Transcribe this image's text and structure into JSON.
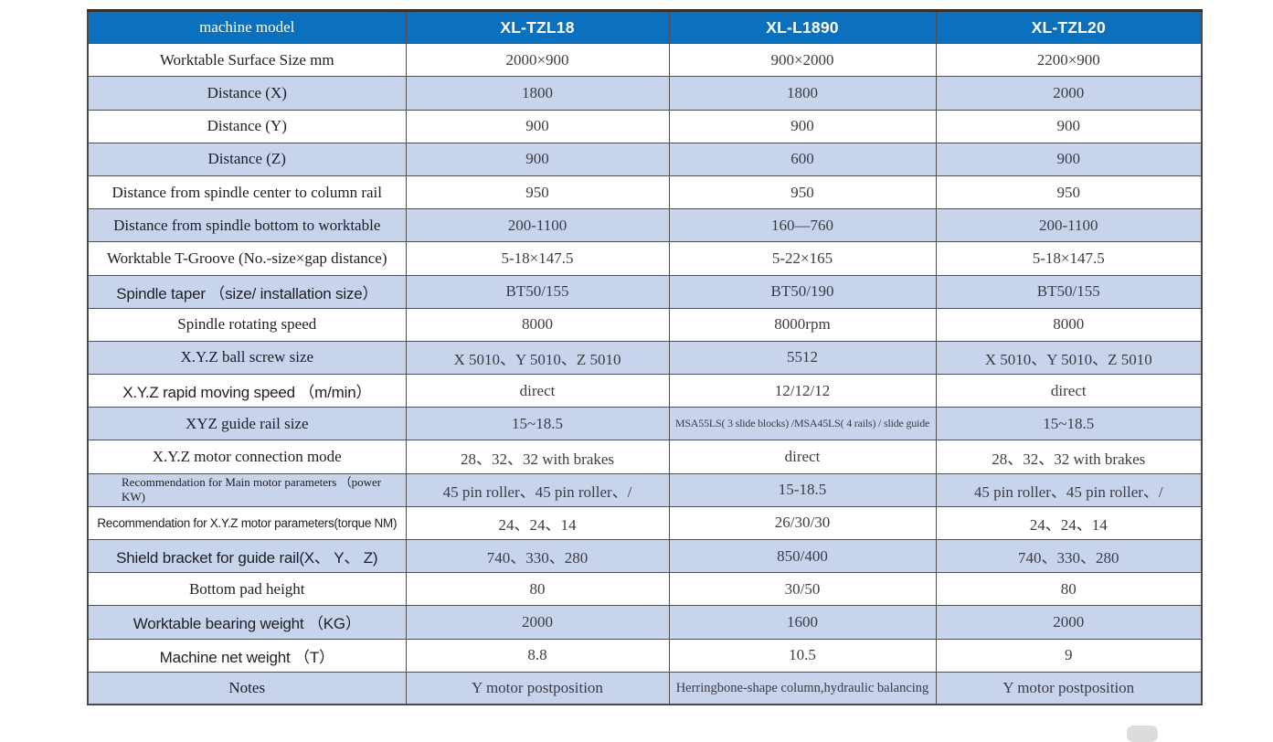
{
  "table": {
    "colors": {
      "header_bg": "#0b70bd",
      "stripe_bg": "#c7d4ec"
    },
    "columns": [
      "machine model",
      "XL-TZL18",
      "XL-L1890",
      "XL-TZL20"
    ],
    "rows": [
      {
        "label": "Worktable Surface Size mm",
        "values": [
          "2000×900",
          "900×2000",
          "2200×900"
        ]
      },
      {
        "label": "Distance (X)",
        "values": [
          "1800",
          "1800",
          "2000"
        ]
      },
      {
        "label": "Distance (Y)",
        "values": [
          "900",
          "900",
          "900"
        ]
      },
      {
        "label": "Distance (Z)",
        "values": [
          "900",
          "600",
          "900"
        ]
      },
      {
        "label": "Distance from spindle center to column rail",
        "values": [
          "950",
          "950",
          "950"
        ]
      },
      {
        "label": "Distance from spindle bottom to worktable",
        "values": [
          "200-1100",
          "160—760",
          "200-1100"
        ]
      },
      {
        "label": "Worktable T-Groove (No.-size×gap distance)",
        "values": [
          "5-18×147.5",
          "5-22×165",
          "5-18×147.5"
        ]
      },
      {
        "label": "Spindle taper （size/ installation size）",
        "values": [
          "BT50/155",
          "BT50/190",
          "BT50/155"
        ]
      },
      {
        "label": "Spindle rotating speed",
        "values": [
          "8000",
          "8000rpm",
          "8000"
        ]
      },
      {
        "label": "X.Y.Z ball screw size",
        "values": [
          "X 5010、Y 5010、Z 5010",
          "5512",
          "X 5010、Y 5010、Z 5010"
        ]
      },
      {
        "label": "X.Y.Z rapid moving speed （m/min）",
        "values": [
          "direct",
          "12/12/12",
          "direct"
        ]
      },
      {
        "label": "XYZ guide rail size",
        "values": [
          "15~18.5",
          "MSA55LS( 3 slide blocks) /MSA45LS( 4 rails) / slide guide",
          "15~18.5"
        ]
      },
      {
        "label": "X.Y.Z motor connection mode",
        "values": [
          "28、32、32 with brakes",
          "direct",
          "28、32、32 with brakes"
        ]
      },
      {
        "label": "Recommendation for Main motor parameters （power KW)",
        "values": [
          "45 pin roller、45 pin roller、/",
          "15-18.5",
          "45 pin roller、45 pin roller、/"
        ]
      },
      {
        "label": "Recommendation for X.Y.Z motor parameters(torque NM)",
        "values": [
          "24、24、14",
          "26/30/30",
          "24、24、14"
        ]
      },
      {
        "label": "Shield bracket for guide rail(X、 Y、 Z)",
        "values": [
          "740、330、280",
          "850/400",
          "740、330、280"
        ]
      },
      {
        "label": "Bottom pad height",
        "values": [
          "80",
          "30/50",
          "80"
        ]
      },
      {
        "label": "Worktable bearing weight （KG）",
        "values": [
          "2000",
          "1600",
          "2000"
        ]
      },
      {
        "label": "Machine net weight （T）",
        "values": [
          "8.8",
          "10.5",
          "9"
        ]
      },
      {
        "label": "Notes",
        "values": [
          "Y motor postposition",
          "Herringbone-shape column,hydraulic balancing",
          "Y motor postposition"
        ]
      }
    ]
  }
}
